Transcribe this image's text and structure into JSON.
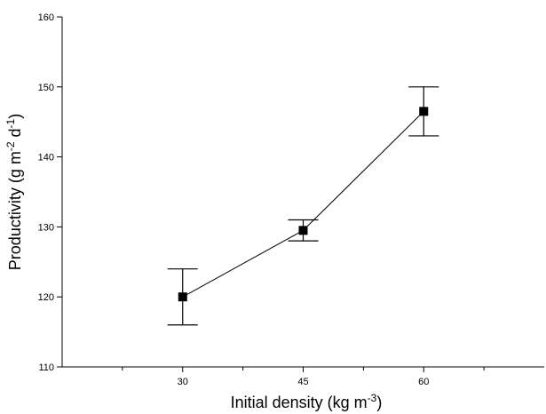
{
  "chart_data": {
    "type": "line",
    "title": "",
    "xlabel": "Initial density (kg m-3)",
    "ylabel": "Productivity (g m-2 d-1)",
    "x_title": {
      "base": "Initial density (kg m",
      "sup": "-3",
      "tail": ")"
    },
    "y_title": {
      "part1": "Productivity (g m",
      "sup1": "-2",
      "part2": " d",
      "sup2": "-1",
      "tail": ")"
    },
    "categories": [
      "30",
      "45",
      "60"
    ],
    "x": [
      30,
      45,
      60
    ],
    "xlim": [
      15,
      75
    ],
    "xticks_major": [
      30,
      45,
      60
    ],
    "xticks_minor": [
      22.5,
      37.5,
      52.5,
      67.5
    ],
    "ylim": [
      110,
      160
    ],
    "yticks": [
      110,
      120,
      130,
      140,
      150,
      160
    ],
    "series": [
      {
        "values": [
          120,
          129.5,
          146.5
        ],
        "error_low": [
          116,
          128,
          143
        ],
        "error_high": [
          124,
          131,
          150
        ],
        "marker": "square",
        "color": "#000000"
      }
    ],
    "grid": false,
    "legend": "none"
  }
}
